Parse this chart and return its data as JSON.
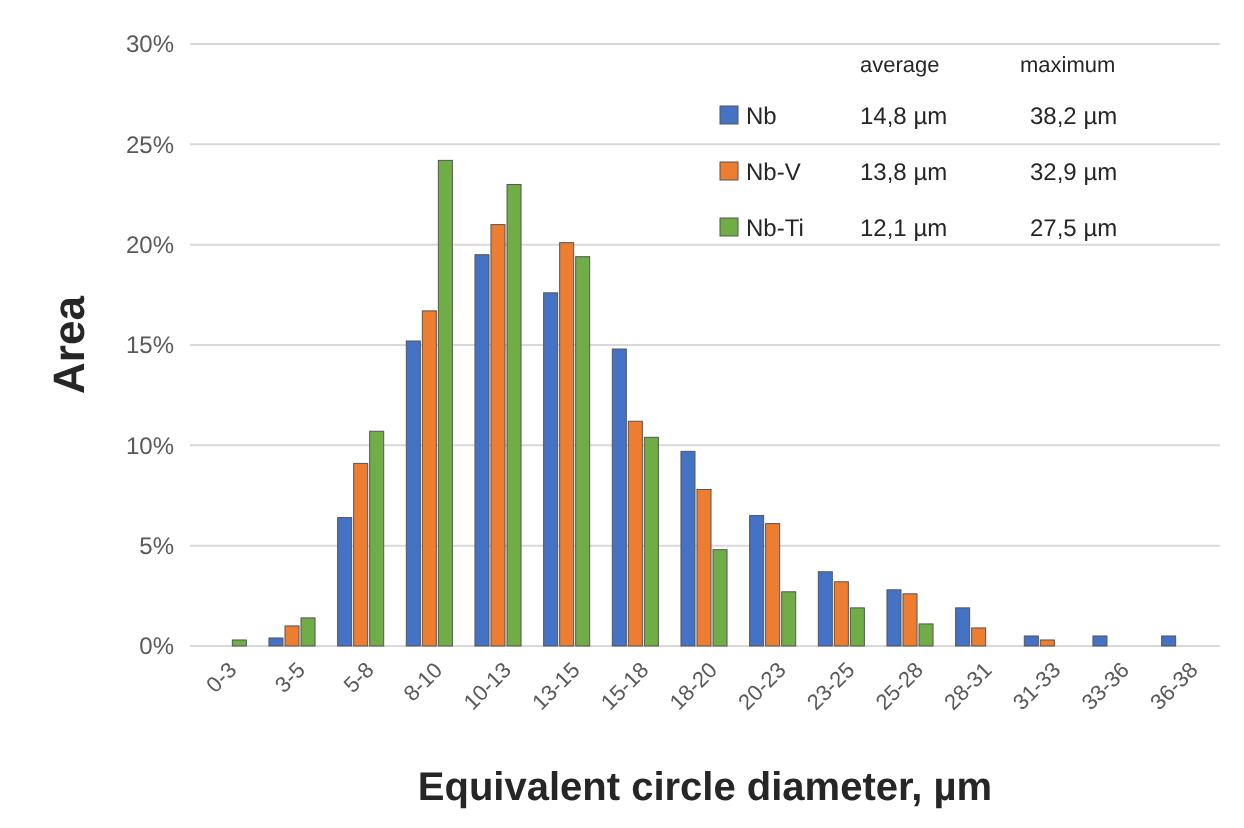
{
  "chart_data": {
    "type": "bar",
    "xlabel": "Equivalent circle diameter, µm",
    "ylabel": "Area",
    "categories": [
      "0-3",
      "3-5",
      "5-8",
      "8-10",
      "10-13",
      "13-15",
      "15-18",
      "18-20",
      "20-23",
      "23-25",
      "25-28",
      "28-31",
      "31-33",
      "33-36",
      "36-38"
    ],
    "series": [
      {
        "name": "Nb",
        "color": "#4472c4",
        "values": [
          0,
          0.4,
          6.4,
          15.2,
          19.5,
          17.6,
          14.8,
          9.7,
          6.5,
          3.7,
          2.8,
          1.9,
          0.5,
          0.5,
          0.5
        ]
      },
      {
        "name": "Nb-V",
        "color": "#ed7d31",
        "values": [
          0,
          1.0,
          9.1,
          16.7,
          21.0,
          20.1,
          11.2,
          7.8,
          6.1,
          3.2,
          2.6,
          0.9,
          0.3,
          0,
          0
        ]
      },
      {
        "name": "Nb-Ti",
        "color": "#70ad47",
        "values": [
          0.3,
          1.4,
          10.7,
          24.2,
          23.0,
          19.4,
          10.4,
          4.8,
          2.7,
          1.9,
          1.1,
          0,
          0,
          0,
          0
        ]
      }
    ],
    "ylim": [
      0,
      30
    ],
    "yticks": [
      {
        "value": 0,
        "label": "0%"
      },
      {
        "value": 5,
        "label": "5%"
      },
      {
        "value": 10,
        "label": "10%"
      },
      {
        "value": 15,
        "label": "15%"
      },
      {
        "value": 20,
        "label": "20%"
      },
      {
        "value": 25,
        "label": "25%"
      },
      {
        "value": 30,
        "label": "30%"
      }
    ],
    "grid": "y",
    "legend": "top right",
    "annotations": [
      "average",
      "maximum",
      "14,8 µm",
      "38,2 µm",
      "13,8 µm",
      "32,9 µm",
      "12,1 µm",
      "27,5 µm"
    ]
  }
}
